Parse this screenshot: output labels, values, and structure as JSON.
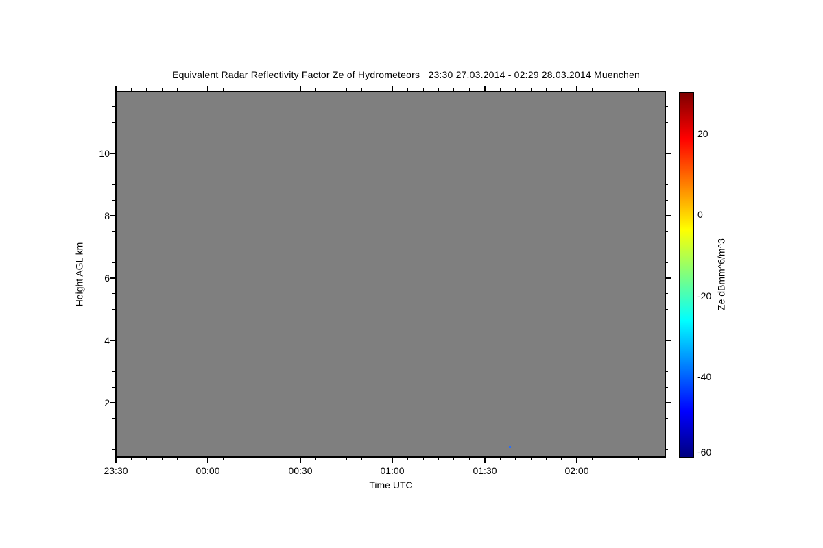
{
  "chart_data": {
    "type": "heatmap",
    "title": "Equivalent Radar Reflectivity Factor Ze of Hydrometeors   23:30 27.03.2014 - 02:29 28.03.2014 Muenchen",
    "xlabel": "Time UTC",
    "ylabel": "Height AGL km",
    "x_axis": {
      "start_time": "23:30",
      "end_time": "02:29",
      "tick_labels": [
        "23:30",
        "00:00",
        "00:30",
        "01:00",
        "01:30",
        "02:00"
      ],
      "major_step_minutes": 30,
      "minor_step_minutes": 5
    },
    "y_axis": {
      "unit": "km",
      "range_km": [
        0.3,
        12
      ],
      "tick_values": [
        2,
        4,
        6,
        8,
        10
      ],
      "tick_labels": [
        "2",
        "4",
        "6",
        "8",
        "10"
      ],
      "minor_step_km": 0.5
    },
    "colorbar": {
      "label": "Ze dBmm^6/m^3",
      "value_range": [
        -60,
        30
      ],
      "tick_values": [
        20,
        0,
        -20,
        -40,
        -60
      ],
      "tick_labels": [
        "20",
        "0",
        "-20",
        "-40",
        "-60"
      ],
      "minor_step": 5,
      "jet_colors": [
        "#7f0000",
        "#ff0000",
        "#ff7f00",
        "#ffff00",
        "#7fff7f",
        "#00ffff",
        "#007fff",
        "#0000ff",
        "#00007f"
      ]
    },
    "field_description": "uniform gray field - no detected hydrometeor signal",
    "no_data_color": "#7f7f7f",
    "grid": false,
    "points": [
      {
        "time_utc": "01:38",
        "height_km": 0.6,
        "ze_dB_approx": -45,
        "color": "#2b6ef5"
      }
    ]
  }
}
